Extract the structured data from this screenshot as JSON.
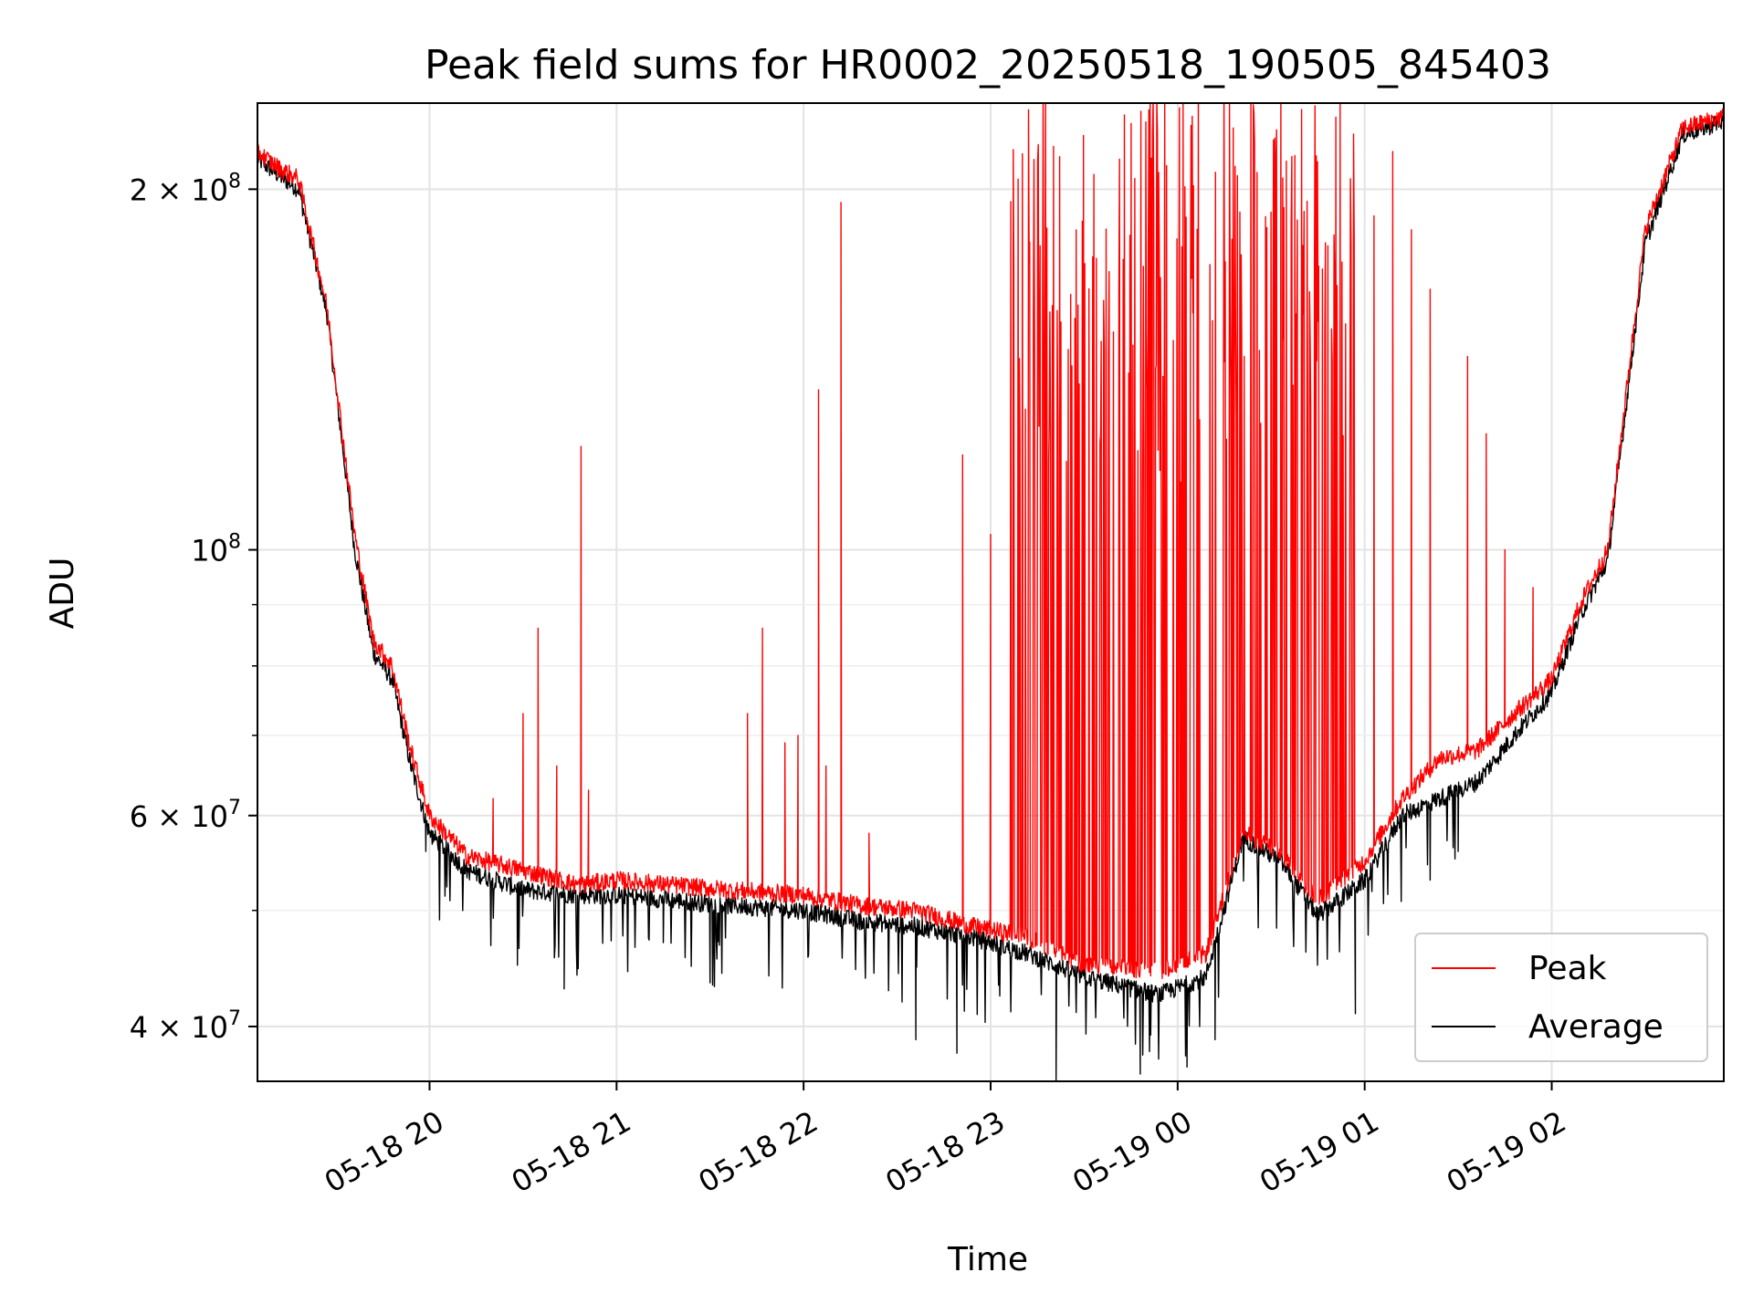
{
  "chart_data": {
    "type": "line",
    "title": "Peak field sums for HR0002_20250518_190505_845403",
    "xlabel": "Time",
    "ylabel": "ADU",
    "yscale": "log",
    "ylim": [
      36000000,
      236000000
    ],
    "xlim_hours": [
      19.08,
      26.92
    ],
    "grid": true,
    "legend_position": "lower-right",
    "x_ticks": [
      {
        "h": 20,
        "label": "05-18 20"
      },
      {
        "h": 21,
        "label": "05-18 21"
      },
      {
        "h": 22,
        "label": "05-18 22"
      },
      {
        "h": 23,
        "label": "05-18 23"
      },
      {
        "h": 24,
        "label": "05-19 00"
      },
      {
        "h": 25,
        "label": "05-19 01"
      },
      {
        "h": 26,
        "label": "05-19 02"
      }
    ],
    "y_major_ticks": [
      {
        "v": 40000000,
        "base": "4 × 10",
        "exp": "7"
      },
      {
        "v": 60000000,
        "base": "6 × 10",
        "exp": "7"
      },
      {
        "v": 100000000,
        "base": "10",
        "exp": "8"
      },
      {
        "v": 200000000,
        "base": "2 × 10",
        "exp": "8"
      }
    ],
    "y_minor_ticks": [
      50000000,
      70000000,
      80000000,
      90000000
    ],
    "series": [
      {
        "name": "Peak",
        "color": "#ff0000",
        "baseline_hours": [
          19.08,
          19.2,
          19.3,
          19.45,
          19.6,
          19.7,
          19.8,
          19.9,
          20.0,
          20.2,
          20.5,
          20.8,
          21.0,
          21.3,
          21.6,
          22.0,
          22.3,
          22.6,
          22.9,
          23.2,
          23.5,
          23.9,
          24.15,
          24.35,
          24.55,
          24.75,
          25.0,
          25.2,
          25.4,
          25.6,
          25.8,
          26.0,
          26.15,
          26.3,
          26.5,
          26.7,
          26.92
        ],
        "baseline_values": [
          215000000,
          208000000,
          204000000,
          160000000,
          103000000,
          84000000,
          80000000,
          68000000,
          60000000,
          55500000,
          54000000,
          52500000,
          53000000,
          52500000,
          52000000,
          51500000,
          50500000,
          50000000,
          48500000,
          47500000,
          45000000,
          44500000,
          46000000,
          58000000,
          56000000,
          51000000,
          55000000,
          62000000,
          67000000,
          68000000,
          73000000,
          78000000,
          90000000,
          100000000,
          185000000,
          225000000,
          230000000
        ],
        "spikes": [
          {
            "h": 20.34,
            "v": 62000000
          },
          {
            "h": 20.5,
            "v": 73000000
          },
          {
            "h": 20.58,
            "v": 86000000
          },
          {
            "h": 20.68,
            "v": 66000000
          },
          {
            "h": 20.81,
            "v": 122000000
          },
          {
            "h": 20.85,
            "v": 63000000
          },
          {
            "h": 21.7,
            "v": 73000000
          },
          {
            "h": 21.78,
            "v": 86000000
          },
          {
            "h": 21.9,
            "v": 69000000
          },
          {
            "h": 21.97,
            "v": 70000000
          },
          {
            "h": 22.08,
            "v": 136000000
          },
          {
            "h": 22.12,
            "v": 66000000
          },
          {
            "h": 22.2,
            "v": 195000000
          },
          {
            "h": 22.35,
            "v": 58000000
          },
          {
            "h": 22.85,
            "v": 120000000
          },
          {
            "h": 23.0,
            "v": 103000000
          },
          {
            "h": 25.05,
            "v": 190000000
          },
          {
            "h": 25.15,
            "v": 215000000
          },
          {
            "h": 25.25,
            "v": 185000000
          },
          {
            "h": 25.35,
            "v": 165000000
          },
          {
            "h": 25.55,
            "v": 145000000
          },
          {
            "h": 25.65,
            "v": 125000000
          },
          {
            "h": 25.75,
            "v": 100000000
          },
          {
            "h": 25.9,
            "v": 93000000
          }
        ],
        "dense_region_hours": [
          23.1,
          24.95
        ],
        "dense_region_top": 236000000
      },
      {
        "name": "Average",
        "color": "#000000",
        "baseline_hours": [
          19.08,
          19.2,
          19.3,
          19.45,
          19.6,
          19.7,
          19.8,
          19.9,
          20.0,
          20.2,
          20.5,
          20.8,
          21.0,
          21.3,
          21.6,
          22.0,
          22.3,
          22.6,
          22.9,
          23.2,
          23.5,
          23.9,
          24.15,
          24.35,
          24.55,
          24.75,
          25.0,
          25.2,
          25.4,
          25.6,
          25.8,
          26.0,
          26.15,
          26.3,
          26.5,
          26.7,
          26.92
        ],
        "baseline_values": [
          212000000,
          205000000,
          200000000,
          158000000,
          100000000,
          82000000,
          78000000,
          66000000,
          58000000,
          54000000,
          52000000,
          51500000,
          51500000,
          51000000,
          50500000,
          50000000,
          49000000,
          48500000,
          47500000,
          46000000,
          44000000,
          42500000,
          44000000,
          57500000,
          55000000,
          49500000,
          53000000,
          60000000,
          62000000,
          64000000,
          70000000,
          76000000,
          88000000,
          98000000,
          180000000,
          222000000,
          228000000
        ],
        "dips": [
          {
            "h": 19.98,
            "v": 56000000
          },
          {
            "h": 20.47,
            "v": 45000000
          },
          {
            "h": 20.72,
            "v": 43000000
          },
          {
            "h": 21.25,
            "v": 47000000
          },
          {
            "h": 21.5,
            "v": 43500000
          },
          {
            "h": 22.6,
            "v": 39000000
          },
          {
            "h": 22.82,
            "v": 38000000
          },
          {
            "h": 23.35,
            "v": 36000000
          },
          {
            "h": 23.8,
            "v": 36500000
          },
          {
            "h": 24.05,
            "v": 37000000
          },
          {
            "h": 24.2,
            "v": 39000000
          },
          {
            "h": 24.95,
            "v": 41000000
          },
          {
            "h": 25.35,
            "v": 53000000
          },
          {
            "h": 25.5,
            "v": 56000000
          }
        ]
      }
    ]
  }
}
